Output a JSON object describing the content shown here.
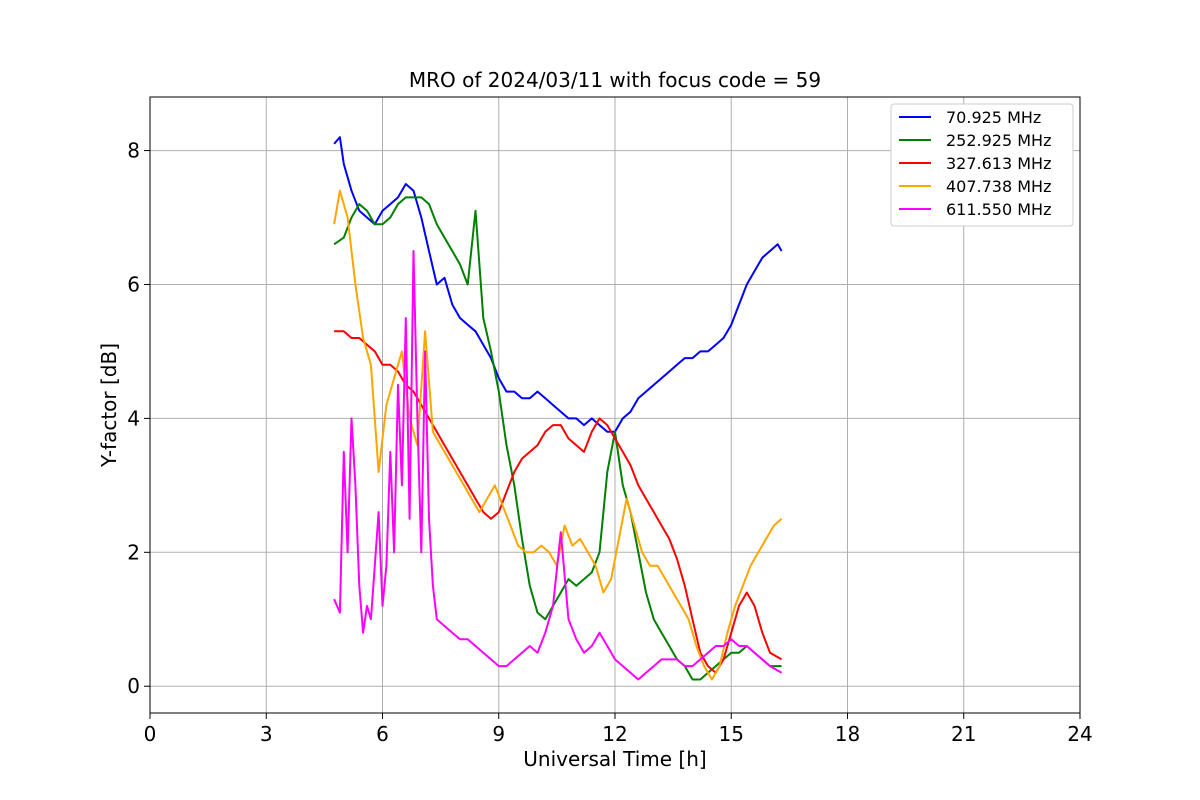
{
  "chart_data": {
    "type": "line",
    "title": "MRO of 2024/03/11 with focus code = 59",
    "xlabel": "Universal Time [h]",
    "ylabel": "Y-factor [dB]",
    "xlim": [
      0,
      24
    ],
    "ylim": [
      -0.4,
      8.8
    ],
    "xticks": [
      0,
      3,
      6,
      9,
      12,
      15,
      18,
      21,
      24
    ],
    "yticks": [
      0,
      2,
      4,
      6,
      8
    ],
    "grid": true,
    "legend_position": "top-right",
    "series": [
      {
        "name": " 70.925 MHz",
        "color": "#0000ff",
        "x": [
          4.75,
          4.9,
          5.0,
          5.2,
          5.4,
          5.6,
          5.8,
          6.0,
          6.2,
          6.4,
          6.6,
          6.8,
          7.0,
          7.2,
          7.4,
          7.6,
          7.8,
          8.0,
          8.2,
          8.4,
          8.6,
          8.8,
          9.0,
          9.2,
          9.4,
          9.6,
          9.8,
          10.0,
          10.2,
          10.4,
          10.6,
          10.8,
          11.0,
          11.2,
          11.4,
          11.6,
          11.8,
          12.0,
          12.2,
          12.4,
          12.6,
          12.8,
          13.0,
          13.2,
          13.4,
          13.6,
          13.8,
          14.0,
          14.2,
          14.4,
          14.6,
          14.8,
          15.0,
          15.2,
          15.4,
          15.6,
          15.8,
          16.0,
          16.2,
          16.3
        ],
        "y": [
          8.1,
          8.2,
          7.8,
          7.4,
          7.1,
          7.0,
          6.9,
          7.1,
          7.2,
          7.3,
          7.5,
          7.4,
          7.0,
          6.5,
          6.0,
          6.1,
          5.7,
          5.5,
          5.4,
          5.3,
          5.1,
          4.9,
          4.6,
          4.4,
          4.4,
          4.3,
          4.3,
          4.4,
          4.3,
          4.2,
          4.1,
          4.0,
          4.0,
          3.9,
          4.0,
          3.9,
          3.8,
          3.8,
          4.0,
          4.1,
          4.3,
          4.4,
          4.5,
          4.6,
          4.7,
          4.8,
          4.9,
          4.9,
          5.0,
          5.0,
          5.1,
          5.2,
          5.4,
          5.7,
          6.0,
          6.2,
          6.4,
          6.5,
          6.6,
          6.5
        ]
      },
      {
        "name": "252.925 MHz",
        "color": "#008000",
        "x": [
          4.75,
          5.0,
          5.2,
          5.4,
          5.6,
          5.8,
          6.0,
          6.2,
          6.4,
          6.6,
          6.8,
          7.0,
          7.2,
          7.4,
          7.6,
          7.8,
          8.0,
          8.2,
          8.4,
          8.6,
          8.8,
          9.0,
          9.2,
          9.4,
          9.6,
          9.8,
          10.0,
          10.2,
          10.4,
          10.6,
          10.8,
          11.0,
          11.2,
          11.4,
          11.6,
          11.8,
          12.0,
          12.2,
          12.4,
          12.6,
          12.8,
          13.0,
          13.2,
          13.4,
          13.6,
          13.8,
          14.0,
          14.2,
          14.4,
          14.6,
          14.8,
          15.0,
          15.2,
          15.4,
          15.6,
          15.8,
          16.0,
          16.3
        ],
        "y": [
          6.6,
          6.7,
          7.0,
          7.2,
          7.1,
          6.9,
          6.9,
          7.0,
          7.2,
          7.3,
          7.3,
          7.3,
          7.2,
          6.9,
          6.7,
          6.5,
          6.3,
          6.0,
          7.1,
          5.5,
          5.0,
          4.4,
          3.6,
          3.0,
          2.2,
          1.5,
          1.1,
          1.0,
          1.2,
          1.4,
          1.6,
          1.5,
          1.6,
          1.7,
          2.0,
          3.2,
          3.8,
          3.0,
          2.6,
          2.0,
          1.4,
          1.0,
          0.8,
          0.6,
          0.4,
          0.3,
          0.1,
          0.1,
          0.2,
          0.3,
          0.4,
          0.5,
          0.5,
          0.6,
          0.5,
          0.4,
          0.3,
          0.3
        ]
      },
      {
        "name": "327.613 MHz",
        "color": "#ff0000",
        "x": [
          4.75,
          5.0,
          5.2,
          5.4,
          5.6,
          5.8,
          6.0,
          6.2,
          6.4,
          6.6,
          6.8,
          7.0,
          7.2,
          7.4,
          7.6,
          7.8,
          8.0,
          8.2,
          8.4,
          8.6,
          8.8,
          9.0,
          9.2,
          9.4,
          9.6,
          9.8,
          10.0,
          10.2,
          10.4,
          10.6,
          10.8,
          11.0,
          11.2,
          11.4,
          11.6,
          11.8,
          12.0,
          12.2,
          12.4,
          12.6,
          12.8,
          13.0,
          13.2,
          13.4,
          13.6,
          13.8,
          14.0,
          14.2,
          14.4,
          14.6,
          14.8,
          15.0,
          15.2,
          15.4,
          15.6,
          15.8,
          16.0,
          16.3
        ],
        "y": [
          5.3,
          5.3,
          5.2,
          5.2,
          5.1,
          5.0,
          4.8,
          4.8,
          4.7,
          4.5,
          4.4,
          4.2,
          4.0,
          3.8,
          3.6,
          3.4,
          3.2,
          3.0,
          2.8,
          2.6,
          2.5,
          2.6,
          2.9,
          3.2,
          3.4,
          3.5,
          3.6,
          3.8,
          3.9,
          3.9,
          3.7,
          3.6,
          3.5,
          3.8,
          4.0,
          3.9,
          3.7,
          3.5,
          3.3,
          3.0,
          2.8,
          2.6,
          2.4,
          2.2,
          1.9,
          1.5,
          1.0,
          0.5,
          0.3,
          0.2,
          0.4,
          0.8,
          1.2,
          1.4,
          1.2,
          0.8,
          0.5,
          0.4
        ]
      },
      {
        "name": "407.738 MHz",
        "color": "#ffa500",
        "x": [
          4.75,
          4.9,
          5.1,
          5.3,
          5.5,
          5.7,
          5.9,
          6.1,
          6.3,
          6.5,
          6.7,
          6.9,
          7.1,
          7.3,
          7.5,
          7.7,
          7.9,
          8.1,
          8.3,
          8.5,
          8.7,
          8.9,
          9.1,
          9.3,
          9.5,
          9.7,
          9.9,
          10.1,
          10.3,
          10.5,
          10.7,
          10.9,
          11.1,
          11.3,
          11.5,
          11.7,
          11.9,
          12.1,
          12.3,
          12.5,
          12.7,
          12.9,
          13.1,
          13.3,
          13.5,
          13.7,
          13.9,
          14.1,
          14.3,
          14.5,
          14.7,
          14.9,
          15.1,
          15.3,
          15.5,
          15.7,
          15.9,
          16.1,
          16.3
        ],
        "y": [
          6.9,
          7.4,
          7.0,
          6.0,
          5.2,
          4.8,
          3.2,
          4.2,
          4.6,
          5.0,
          4.0,
          3.6,
          5.3,
          3.8,
          3.6,
          3.4,
          3.2,
          3.0,
          2.8,
          2.6,
          2.8,
          3.0,
          2.7,
          2.4,
          2.1,
          2.0,
          2.0,
          2.1,
          2.0,
          1.8,
          2.4,
          2.1,
          2.2,
          2.0,
          1.8,
          1.4,
          1.6,
          2.2,
          2.8,
          2.4,
          2.0,
          1.8,
          1.8,
          1.6,
          1.4,
          1.2,
          1.0,
          0.6,
          0.3,
          0.1,
          0.3,
          0.8,
          1.2,
          1.5,
          1.8,
          2.0,
          2.2,
          2.4,
          2.5
        ]
      },
      {
        "name": "611.550 MHz",
        "color": "#ff00ff",
        "x": [
          4.75,
          4.9,
          5.0,
          5.1,
          5.2,
          5.3,
          5.4,
          5.5,
          5.6,
          5.7,
          5.8,
          5.9,
          6.0,
          6.1,
          6.2,
          6.3,
          6.4,
          6.5,
          6.6,
          6.7,
          6.8,
          6.9,
          7.0,
          7.1,
          7.2,
          7.3,
          7.4,
          7.6,
          7.8,
          8.0,
          8.2,
          8.4,
          8.6,
          8.8,
          9.0,
          9.2,
          9.4,
          9.6,
          9.8,
          10.0,
          10.2,
          10.4,
          10.6,
          10.8,
          11.0,
          11.2,
          11.4,
          11.6,
          11.8,
          12.0,
          12.2,
          12.4,
          12.6,
          12.8,
          13.0,
          13.2,
          13.4,
          13.6,
          13.8,
          14.0,
          14.2,
          14.4,
          14.6,
          14.8,
          15.0,
          15.2,
          15.4,
          15.6,
          15.8,
          16.0,
          16.3
        ],
        "y": [
          1.3,
          1.1,
          3.5,
          2.0,
          4.0,
          3.0,
          1.5,
          0.8,
          1.2,
          1.0,
          1.8,
          2.6,
          1.2,
          1.8,
          3.5,
          2.0,
          4.5,
          3.0,
          5.5,
          2.5,
          6.5,
          4.0,
          2.0,
          5.0,
          2.5,
          1.5,
          1.0,
          0.9,
          0.8,
          0.7,
          0.7,
          0.6,
          0.5,
          0.4,
          0.3,
          0.3,
          0.4,
          0.5,
          0.6,
          0.5,
          0.8,
          1.2,
          2.3,
          1.0,
          0.7,
          0.5,
          0.6,
          0.8,
          0.6,
          0.4,
          0.3,
          0.2,
          0.1,
          0.2,
          0.3,
          0.4,
          0.4,
          0.4,
          0.3,
          0.3,
          0.4,
          0.5,
          0.6,
          0.6,
          0.7,
          0.6,
          0.6,
          0.5,
          0.4,
          0.3,
          0.2
        ]
      }
    ]
  }
}
